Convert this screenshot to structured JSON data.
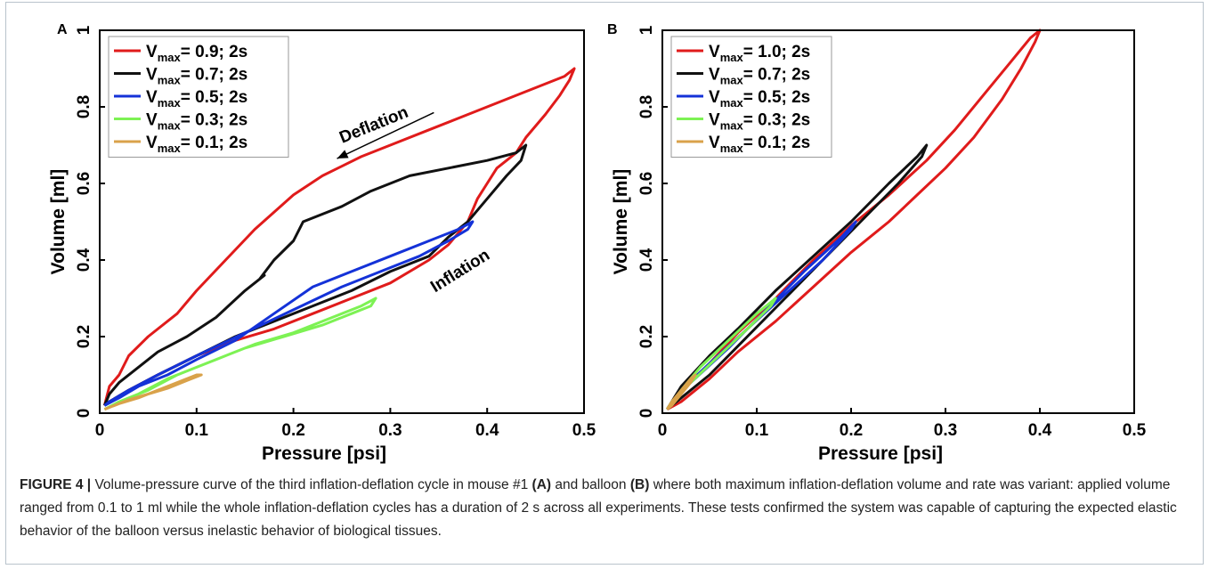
{
  "caption": {
    "label": "FIGURE 4 |",
    "text_1": " Volume-pressure curve of the third inflation-deflation cycle in mouse #1 ",
    "ref_a": "(A)",
    "text_2": " and balloon ",
    "ref_b": "(B)",
    "text_3": " where both maximum inflation-deflation volume and rate was variant: applied volume ranged from 0.1 to 1 ml while the whole inflation-deflation cycles has a duration of 2 s across all experiments. These tests confirmed the system was capable of capturing the expected elastic behavior of the balloon versus inelastic behavior of biological tissues."
  },
  "chart_data": [
    {
      "panel": "A",
      "type": "line",
      "xlabel": "Pressure [psi]",
      "ylabel": "Volume [ml]",
      "xlim": [
        0,
        0.5
      ],
      "ylim": [
        0,
        1
      ],
      "x_ticks": [
        "0",
        "0.1",
        "0.2",
        "0.3",
        "0.4",
        "0.5"
      ],
      "y_ticks": [
        "0",
        "0.2",
        "0.4",
        "0.6",
        "0.8",
        "1"
      ],
      "grid": false,
      "legend_position": "top-left",
      "annotations": [
        {
          "text": "Deflation",
          "x": 0.285,
          "y": 0.74,
          "rotation": -22
        },
        {
          "text": "Inflation",
          "x": 0.375,
          "y": 0.36,
          "rotation": -32
        }
      ],
      "arrow": {
        "from": [
          0.345,
          0.785
        ],
        "to": [
          0.245,
          0.665
        ]
      },
      "series": [
        {
          "name_main": "V",
          "name_sub": "max",
          "name_rest": "= 0.9; 2s",
          "color": "#e01b1b",
          "x": [
            0.005,
            0.01,
            0.02,
            0.03,
            0.05,
            0.08,
            0.1,
            0.13,
            0.16,
            0.2,
            0.23,
            0.27,
            0.3,
            0.34,
            0.38,
            0.42,
            0.45,
            0.48,
            0.49,
            0.485,
            0.475,
            0.46,
            0.44,
            0.43,
            0.42,
            0.41,
            0.4,
            0.39,
            0.38,
            0.37,
            0.36,
            0.34,
            0.3,
            0.26,
            0.22,
            0.18,
            0.14,
            0.1,
            0.06,
            0.03,
            0.01,
            0.005
          ],
          "y": [
            0.02,
            0.07,
            0.1,
            0.15,
            0.2,
            0.26,
            0.32,
            0.4,
            0.48,
            0.57,
            0.62,
            0.67,
            0.7,
            0.74,
            0.78,
            0.82,
            0.85,
            0.88,
            0.9,
            0.87,
            0.83,
            0.78,
            0.72,
            0.68,
            0.66,
            0.64,
            0.6,
            0.56,
            0.5,
            0.47,
            0.44,
            0.4,
            0.34,
            0.3,
            0.26,
            0.22,
            0.19,
            0.15,
            0.1,
            0.06,
            0.03,
            0.02
          ]
        },
        {
          "name_main": "V",
          "name_sub": "max",
          "name_rest": "= 0.7; 2s",
          "color": "#111111",
          "x": [
            0.005,
            0.01,
            0.02,
            0.04,
            0.06,
            0.09,
            0.12,
            0.15,
            0.17,
            0.165,
            0.18,
            0.2,
            0.21,
            0.25,
            0.28,
            0.32,
            0.36,
            0.4,
            0.43,
            0.44,
            0.435,
            0.42,
            0.4,
            0.38,
            0.36,
            0.34,
            0.3,
            0.26,
            0.22,
            0.18,
            0.14,
            0.1,
            0.06,
            0.03,
            0.01,
            0.005
          ],
          "y": [
            0.02,
            0.05,
            0.08,
            0.12,
            0.16,
            0.2,
            0.25,
            0.32,
            0.36,
            0.35,
            0.4,
            0.45,
            0.5,
            0.54,
            0.58,
            0.62,
            0.64,
            0.66,
            0.68,
            0.7,
            0.66,
            0.62,
            0.56,
            0.5,
            0.46,
            0.41,
            0.37,
            0.32,
            0.28,
            0.24,
            0.2,
            0.15,
            0.1,
            0.06,
            0.03,
            0.02
          ]
        },
        {
          "name_main": "V",
          "name_sub": "max",
          "name_rest": "= 0.5; 2s",
          "color": "#1432d8",
          "x": [
            0.005,
            0.02,
            0.04,
            0.07,
            0.1,
            0.14,
            0.18,
            0.22,
            0.26,
            0.3,
            0.34,
            0.37,
            0.385,
            0.38,
            0.36,
            0.33,
            0.29,
            0.25,
            0.2,
            0.15,
            0.1,
            0.06,
            0.03,
            0.01,
            0.005
          ],
          "y": [
            0.02,
            0.04,
            0.07,
            0.1,
            0.14,
            0.19,
            0.26,
            0.33,
            0.37,
            0.41,
            0.45,
            0.48,
            0.5,
            0.48,
            0.45,
            0.41,
            0.37,
            0.33,
            0.27,
            0.21,
            0.15,
            0.1,
            0.06,
            0.03,
            0.02
          ]
        },
        {
          "name_main": "V",
          "name_sub": "max",
          "name_rest": "= 0.3; 2s",
          "color": "#7df254",
          "x": [
            0.005,
            0.02,
            0.05,
            0.08,
            0.12,
            0.16,
            0.2,
            0.24,
            0.27,
            0.285,
            0.28,
            0.26,
            0.23,
            0.19,
            0.15,
            0.11,
            0.07,
            0.04,
            0.02,
            0.005
          ],
          "y": [
            0.01,
            0.03,
            0.06,
            0.1,
            0.14,
            0.18,
            0.21,
            0.25,
            0.28,
            0.3,
            0.28,
            0.26,
            0.23,
            0.2,
            0.17,
            0.13,
            0.09,
            0.05,
            0.03,
            0.01
          ]
        },
        {
          "name_main": "V",
          "name_sub": "max",
          "name_rest": "= 0.1; 2s",
          "color": "#d9a24a",
          "x": [
            0.005,
            0.02,
            0.04,
            0.06,
            0.08,
            0.1,
            0.105,
            0.09,
            0.07,
            0.05,
            0.03,
            0.015,
            0.005
          ],
          "y": [
            0.01,
            0.025,
            0.04,
            0.06,
            0.08,
            0.1,
            0.1,
            0.085,
            0.065,
            0.05,
            0.035,
            0.02,
            0.01
          ]
        }
      ]
    },
    {
      "panel": "B",
      "type": "line",
      "xlabel": "Pressure [psi]",
      "ylabel": "Volume [ml]",
      "xlim": [
        0,
        0.5
      ],
      "ylim": [
        0,
        1
      ],
      "x_ticks": [
        "0",
        "0.1",
        "0.2",
        "0.3",
        "0.4",
        "0.5"
      ],
      "y_ticks": [
        "0",
        "0.2",
        "0.4",
        "0.6",
        "0.8",
        "1"
      ],
      "grid": false,
      "legend_position": "top-left",
      "series": [
        {
          "name_main": "V",
          "name_sub": "max",
          "name_rest": "= 1.0; 2s",
          "color": "#e01b1b",
          "x": [
            0.005,
            0.02,
            0.05,
            0.08,
            0.12,
            0.16,
            0.2,
            0.24,
            0.28,
            0.31,
            0.34,
            0.37,
            0.39,
            0.4,
            0.395,
            0.38,
            0.36,
            0.33,
            0.3,
            0.27,
            0.24,
            0.2,
            0.16,
            0.12,
            0.08,
            0.05,
            0.02,
            0.005
          ],
          "y": [
            0.01,
            0.06,
            0.13,
            0.21,
            0.3,
            0.4,
            0.49,
            0.57,
            0.66,
            0.74,
            0.83,
            0.92,
            0.98,
            1.0,
            0.97,
            0.9,
            0.82,
            0.72,
            0.64,
            0.57,
            0.5,
            0.42,
            0.33,
            0.24,
            0.16,
            0.09,
            0.03,
            0.01
          ]
        },
        {
          "name_main": "V",
          "name_sub": "max",
          "name_rest": "= 0.7; 2s",
          "color": "#111111",
          "x": [
            0.005,
            0.02,
            0.05,
            0.08,
            0.12,
            0.16,
            0.2,
            0.24,
            0.27,
            0.28,
            0.275,
            0.25,
            0.21,
            0.17,
            0.13,
            0.09,
            0.05,
            0.02,
            0.005
          ],
          "y": [
            0.01,
            0.07,
            0.15,
            0.22,
            0.32,
            0.41,
            0.5,
            0.6,
            0.67,
            0.7,
            0.67,
            0.6,
            0.5,
            0.4,
            0.3,
            0.2,
            0.1,
            0.04,
            0.01
          ]
        },
        {
          "name_main": "V",
          "name_sub": "max",
          "name_rest": "= 0.5; 2s",
          "color": "#1432d8",
          "x": [
            0.005,
            0.02,
            0.05,
            0.09,
            0.13,
            0.17,
            0.2,
            0.205,
            0.19,
            0.15,
            0.11,
            0.07,
            0.03,
            0.01,
            0.005
          ],
          "y": [
            0.01,
            0.06,
            0.13,
            0.22,
            0.31,
            0.4,
            0.48,
            0.5,
            0.46,
            0.37,
            0.27,
            0.17,
            0.08,
            0.03,
            0.01
          ]
        },
        {
          "name_main": "V",
          "name_sub": "max",
          "name_rest": "= 0.3; 2s",
          "color": "#7df254",
          "x": [
            0.005,
            0.02,
            0.04,
            0.07,
            0.1,
            0.12,
            0.115,
            0.09,
            0.06,
            0.03,
            0.01,
            0.005
          ],
          "y": [
            0.01,
            0.06,
            0.12,
            0.19,
            0.26,
            0.3,
            0.28,
            0.22,
            0.15,
            0.08,
            0.03,
            0.01
          ]
        },
        {
          "name_main": "V",
          "name_sub": "max",
          "name_rest": "= 0.1; 2s",
          "color": "#d9a24a",
          "x": [
            0.005,
            0.01,
            0.02,
            0.03,
            0.035,
            0.03,
            0.02,
            0.01,
            0.005
          ],
          "y": [
            0.01,
            0.03,
            0.06,
            0.09,
            0.1,
            0.08,
            0.05,
            0.02,
            0.01
          ]
        }
      ]
    }
  ]
}
